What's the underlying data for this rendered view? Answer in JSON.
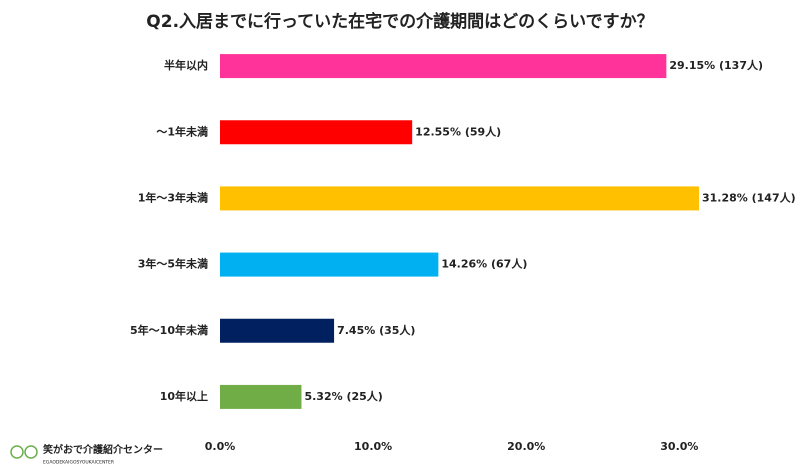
{
  "chart_data": {
    "type": "hbar",
    "title": "Q2.入居までに行っていた在宅での介護期間はどのくらいですか？",
    "categories": [
      "半年以内",
      "～1年未満",
      "1年～3年未満",
      "3年～5年未満",
      "5年～10年未満",
      "10年以上"
    ],
    "values": [
      29.15,
      12.55,
      31.28,
      14.26,
      7.45,
      5.32
    ],
    "value_labels": [
      "29.15% (137人)",
      "12.55% (59人)",
      "31.28% (147人)",
      "14.26% (67人)",
      "7.45% (35人)",
      "5.32% (25人)"
    ],
    "colors": [
      "#ff3399",
      "#ff0000",
      "#ffc000",
      "#00b0f0",
      "#002060",
      "#70ad47"
    ],
    "xlim": [
      0,
      32
    ],
    "xticks": [
      {
        "value": 0,
        "label": "0.0%"
      },
      {
        "value": 10,
        "label": "10.0%"
      },
      {
        "value": 20,
        "label": "20.0%"
      },
      {
        "value": 30,
        "label": "30.0%"
      }
    ],
    "grid": false
  },
  "logo": {
    "name": "笑がおで介護紹介センター",
    "subtitle": "EGAODEKAIGOSYOUKAICENTER"
  }
}
